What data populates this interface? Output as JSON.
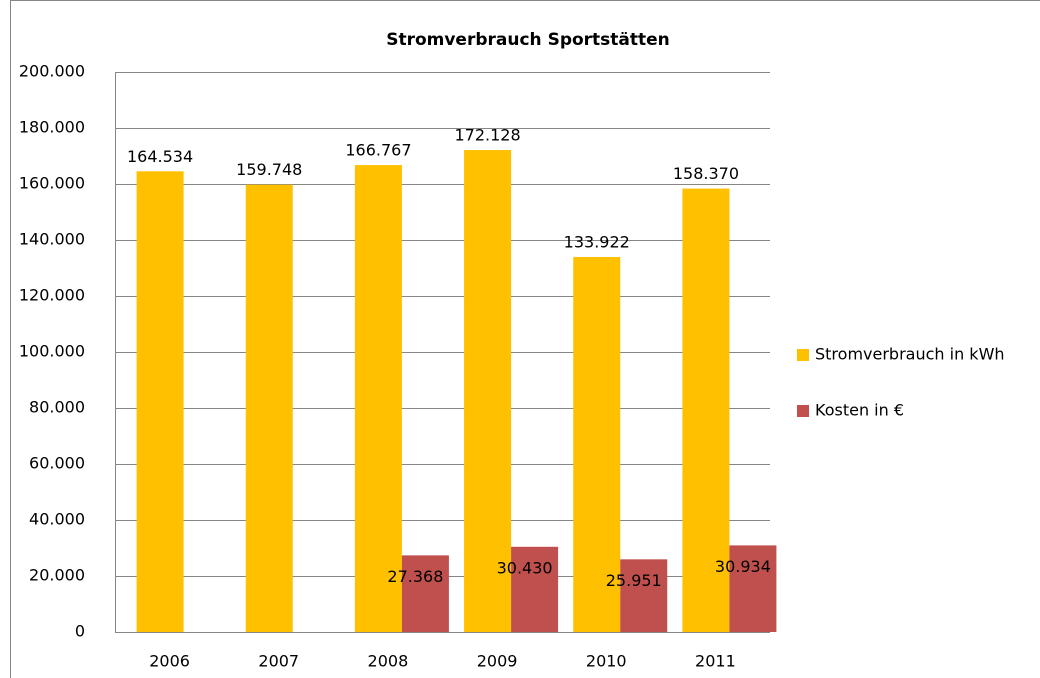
{
  "chart_data": {
    "type": "bar",
    "title": "Stromverbrauch Sportstätten",
    "categories": [
      "2006",
      "2007",
      "2008",
      "2009",
      "2010",
      "2011"
    ],
    "series": [
      {
        "name": "Stromverbrauch in kWh",
        "color": "#ffc000",
        "values": [
          164534,
          159748,
          166767,
          172128,
          133922,
          158370
        ],
        "value_labels": [
          "164.534",
          "159.748",
          "166.767",
          "172.128",
          "133.922",
          "158.370"
        ]
      },
      {
        "name": "Kosten in €",
        "color": "#c0504d",
        "values": [
          null,
          null,
          27368,
          30430,
          25951,
          30934
        ],
        "value_labels": [
          null,
          null,
          "27.368",
          "30.430",
          "25.951",
          "30.934"
        ]
      }
    ],
    "ylim": [
      0,
      200000
    ],
    "yticks": [
      0,
      {
        "value": 20000,
        "label": "20.000"
      },
      {
        "value": 40000,
        "label": "40.000"
      },
      {
        "value": 60000,
        "label": "60.000"
      },
      {
        "value": 80000,
        "label": "80.000"
      },
      {
        "value": 100000,
        "label": "100.000"
      },
      {
        "value": 120000,
        "label": "120.000"
      },
      {
        "value": 140000,
        "label": "140.000"
      },
      {
        "value": 160000,
        "label": "160.000"
      },
      {
        "value": 180000,
        "label": "180.000"
      },
      {
        "value": 200000,
        "label": "200.000"
      }
    ],
    "grid": true,
    "legend": "right"
  }
}
